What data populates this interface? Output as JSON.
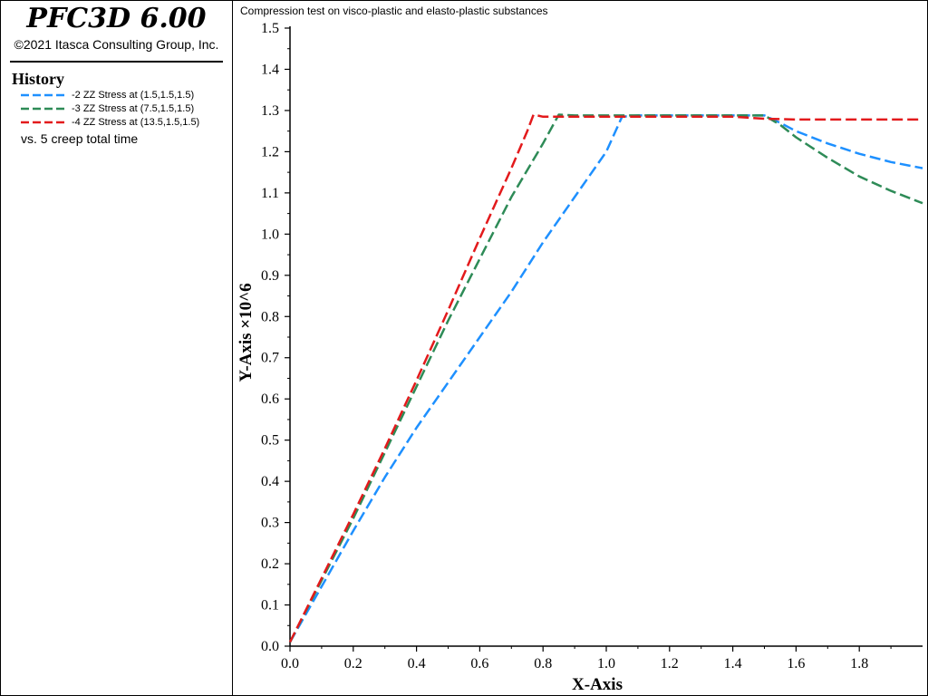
{
  "app": {
    "title": "PFC3D 6.00",
    "copyright": "©2021 Itasca Consulting Group, Inc."
  },
  "legend": {
    "heading": "History",
    "vs_label": "vs. 5 creep total time"
  },
  "chart_data": {
    "type": "line",
    "title": "Compression test on visco-plastic and elasto-plastic substances",
    "xlabel": "X-Axis",
    "ylabel": "Y-Axis ×10^6",
    "xlim": [
      0.0,
      2.0
    ],
    "ylim": [
      0.0,
      1.5
    ],
    "xticks": [
      "0.0",
      "0.2",
      "0.4",
      "0.6",
      "0.8",
      "1.0",
      "1.2",
      "1.4",
      "1.6",
      "1.8"
    ],
    "yticks": [
      "0.0",
      "0.1",
      "0.2",
      "0.3",
      "0.4",
      "0.5",
      "0.6",
      "0.7",
      "0.8",
      "0.9",
      "1.0",
      "1.1",
      "1.2",
      "1.3",
      "1.4",
      "1.5"
    ],
    "legend_position": "left-panel",
    "grid": false,
    "series": [
      {
        "name": "-2 ZZ Stress at (1.5,1.5,1.5)",
        "color": "#1e90ff",
        "x": [
          0.0,
          0.1,
          0.2,
          0.3,
          0.4,
          0.5,
          0.6,
          0.7,
          0.8,
          0.9,
          1.0,
          1.05,
          1.1,
          1.2,
          1.3,
          1.4,
          1.5,
          1.55,
          1.6,
          1.7,
          1.8,
          1.9,
          2.0
        ],
        "y": [
          0.01,
          0.145,
          0.28,
          0.41,
          0.53,
          0.64,
          0.75,
          0.86,
          0.98,
          1.09,
          1.2,
          1.285,
          1.288,
          1.288,
          1.288,
          1.288,
          1.288,
          1.27,
          1.25,
          1.22,
          1.195,
          1.175,
          1.16
        ]
      },
      {
        "name": "-3 ZZ Stress at (7.5,1.5,1.5)",
        "color": "#2e8b57",
        "x": [
          0.0,
          0.1,
          0.2,
          0.3,
          0.4,
          0.5,
          0.6,
          0.7,
          0.8,
          0.85,
          0.9,
          1.0,
          1.1,
          1.2,
          1.3,
          1.4,
          1.5,
          1.55,
          1.6,
          1.7,
          1.8,
          1.9,
          2.0
        ],
        "y": [
          0.01,
          0.16,
          0.31,
          0.47,
          0.63,
          0.79,
          0.94,
          1.09,
          1.22,
          1.29,
          1.288,
          1.288,
          1.288,
          1.288,
          1.288,
          1.288,
          1.288,
          1.265,
          1.235,
          1.185,
          1.14,
          1.105,
          1.075
        ]
      },
      {
        "name": "-4 ZZ Stress at (13.5,1.5,1.5)",
        "color": "#e31a1c",
        "x": [
          0.0,
          0.1,
          0.2,
          0.3,
          0.4,
          0.5,
          0.6,
          0.7,
          0.75,
          0.77,
          0.8,
          0.9,
          1.0,
          1.2,
          1.4,
          1.5,
          1.6,
          1.8,
          2.0
        ],
        "y": [
          0.01,
          0.165,
          0.32,
          0.48,
          0.645,
          0.815,
          0.99,
          1.16,
          1.25,
          1.29,
          1.285,
          1.285,
          1.285,
          1.285,
          1.285,
          1.28,
          1.278,
          1.278,
          1.278
        ]
      }
    ]
  }
}
